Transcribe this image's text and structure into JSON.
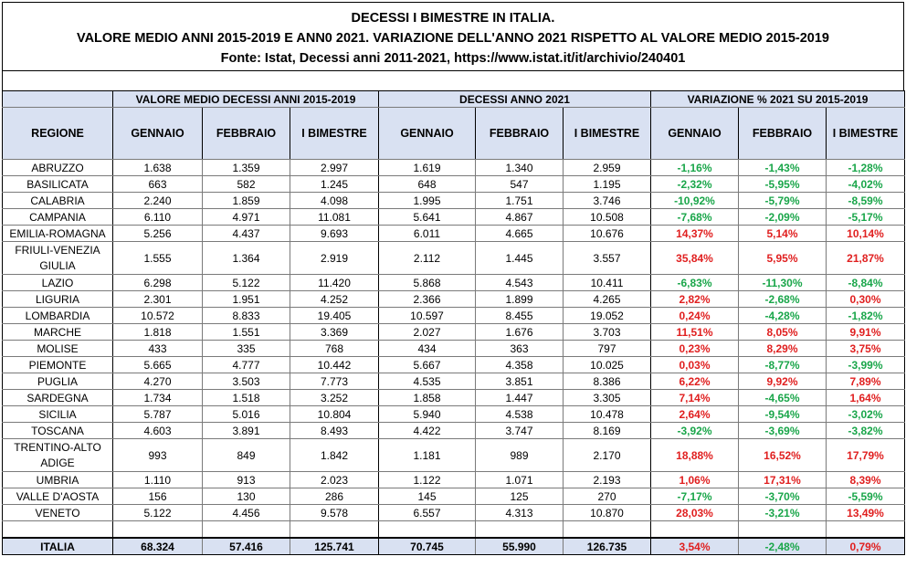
{
  "title": {
    "line1": "DECESSI I BIMESTRE IN ITALIA.",
    "line2": "VALORE MEDIO ANNI 2015-2019 E ANN0 2021. VARIAZIONE DELL'ANNO 2021 RISPETTO AL VALORE MEDIO 2015-2019",
    "line3": "Fonte: Istat, Decessi anni 2011-2021, https://www.istat.it/it/archivio/240401"
  },
  "colors": {
    "header_bg": "#d9e1f2",
    "increase": "#e02020",
    "decrease": "#1aa64a"
  },
  "groups": {
    "avg": "VALORE MEDIO DECESSI ANNI 2015-2019",
    "y2021": "DECESSI ANNO 2021",
    "var": "VARIAZIONE % 2021 SU 2015-2019"
  },
  "headers": [
    "REGIONE",
    "GENNAIO",
    "FEBBRAIO",
    "I BIMESTRE",
    "GENNAIO",
    "FEBBRAIO",
    "I BIMESTRE",
    "GENNAIO",
    "FEBBRAIO",
    "I BIMESTRE"
  ],
  "rows": [
    [
      "ABRUZZO",
      "1.638",
      "1.359",
      "2.997",
      "1.619",
      "1.340",
      "2.959",
      "-1,16%",
      "-1,43%",
      "-1,28%"
    ],
    [
      "BASILICATA",
      "663",
      "582",
      "1.245",
      "648",
      "547",
      "1.195",
      "-2,32%",
      "-5,95%",
      "-4,02%"
    ],
    [
      "CALABRIA",
      "2.240",
      "1.859",
      "4.098",
      "1.995",
      "1.751",
      "3.746",
      "-10,92%",
      "-5,79%",
      "-8,59%"
    ],
    [
      "CAMPANIA",
      "6.110",
      "4.971",
      "11.081",
      "5.641",
      "4.867",
      "10.508",
      "-7,68%",
      "-2,09%",
      "-5,17%"
    ],
    [
      "EMILIA-ROMAGNA",
      "5.256",
      "4.437",
      "9.693",
      "6.011",
      "4.665",
      "10.676",
      "14,37%",
      "5,14%",
      "10,14%"
    ],
    [
      "FRIULI-VENEZIA GIULIA",
      "1.555",
      "1.364",
      "2.919",
      "2.112",
      "1.445",
      "3.557",
      "35,84%",
      "5,95%",
      "21,87%"
    ],
    [
      "LAZIO",
      "6.298",
      "5.122",
      "11.420",
      "5.868",
      "4.543",
      "10.411",
      "-6,83%",
      "-11,30%",
      "-8,84%"
    ],
    [
      "LIGURIA",
      "2.301",
      "1.951",
      "4.252",
      "2.366",
      "1.899",
      "4.265",
      "2,82%",
      "-2,68%",
      "0,30%"
    ],
    [
      "LOMBARDIA",
      "10.572",
      "8.833",
      "19.405",
      "10.597",
      "8.455",
      "19.052",
      "0,24%",
      "-4,28%",
      "-1,82%"
    ],
    [
      "MARCHE",
      "1.818",
      "1.551",
      "3.369",
      "2.027",
      "1.676",
      "3.703",
      "11,51%",
      "8,05%",
      "9,91%"
    ],
    [
      "MOLISE",
      "433",
      "335",
      "768",
      "434",
      "363",
      "797",
      "0,23%",
      "8,29%",
      "3,75%"
    ],
    [
      "PIEMONTE",
      "5.665",
      "4.777",
      "10.442",
      "5.667",
      "4.358",
      "10.025",
      "0,03%",
      "-8,77%",
      "-3,99%"
    ],
    [
      "PUGLIA",
      "4.270",
      "3.503",
      "7.773",
      "4.535",
      "3.851",
      "8.386",
      "6,22%",
      "9,92%",
      "7,89%"
    ],
    [
      "SARDEGNA",
      "1.734",
      "1.518",
      "3.252",
      "1.858",
      "1.447",
      "3.305",
      "7,14%",
      "-4,65%",
      "1,64%"
    ],
    [
      "SICILIA",
      "5.787",
      "5.016",
      "10.804",
      "5.940",
      "4.538",
      "10.478",
      "2,64%",
      "-9,54%",
      "-3,02%"
    ],
    [
      "TOSCANA",
      "4.603",
      "3.891",
      "8.493",
      "4.422",
      "3.747",
      "8.169",
      "-3,92%",
      "-3,69%",
      "-3,82%"
    ],
    [
      "TRENTINO-ALTO ADIGE",
      "993",
      "849",
      "1.842",
      "1.181",
      "989",
      "2.170",
      "18,88%",
      "16,52%",
      "17,79%"
    ],
    [
      "UMBRIA",
      "1.110",
      "913",
      "2.023",
      "1.122",
      "1.071",
      "2.193",
      "1,06%",
      "17,31%",
      "8,39%"
    ],
    [
      "VALLE D'AOSTA",
      "156",
      "130",
      "286",
      "145",
      "125",
      "270",
      "-7,17%",
      "-3,70%",
      "-5,59%"
    ],
    [
      "VENETO",
      "5.122",
      "4.456",
      "9.578",
      "6.557",
      "4.313",
      "10.870",
      "28,03%",
      "-3,21%",
      "13,49%"
    ]
  ],
  "total": [
    "ITALIA",
    "68.324",
    "57.416",
    "125.741",
    "70.745",
    "55.990",
    "126.735",
    "3,54%",
    "-2,48%",
    "0,79%"
  ]
}
